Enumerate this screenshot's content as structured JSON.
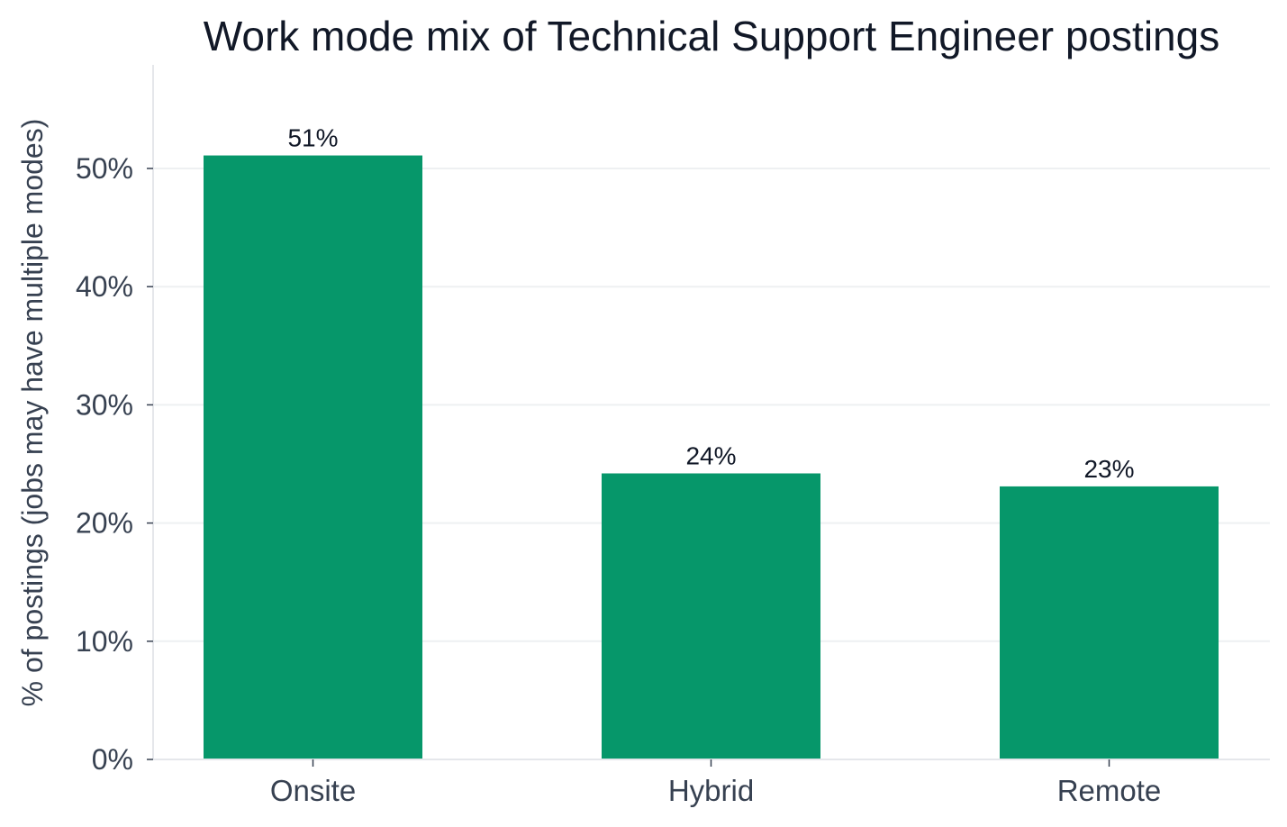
{
  "chart_data": {
    "type": "bar",
    "title": "Work mode mix of Technical Support Engineer postings",
    "xlabel": "",
    "ylabel": "% of postings (jobs may have multiple modes)",
    "categories": [
      "Onsite",
      "Hybrid",
      "Remote"
    ],
    "values": [
      51.1,
      24.2,
      23.1
    ],
    "data_labels": [
      "51%",
      "24%",
      "23%"
    ],
    "ylim": [
      0,
      58.5
    ],
    "yticks": [
      0,
      10,
      20,
      30,
      40,
      50
    ],
    "ytick_labels": [
      "0%",
      "10%",
      "20%",
      "30%",
      "40%",
      "50%"
    ],
    "grid": true,
    "bar_color": "#06976a"
  }
}
